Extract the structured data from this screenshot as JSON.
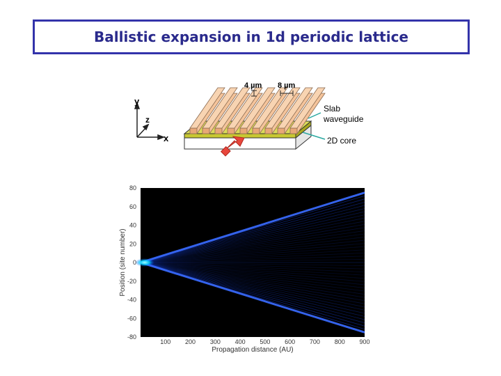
{
  "slide": {
    "title": "Ballistic expansion in 1d periodic lattice"
  },
  "diagram": {
    "axis_y": "y",
    "axis_z": "z",
    "axis_x": "x",
    "width_label": "4 µm",
    "spacing_label": "8 µm",
    "slab_label_1": "Slab",
    "slab_label_2": "waveguide",
    "core_label": "2D core",
    "colors": {
      "ridge": "#f5c49b",
      "slab": "#c8c832",
      "base": "#ffffff",
      "arrow": "#e8463c",
      "pointer": "#2aa8a0"
    }
  },
  "chart_data": {
    "type": "heatmap",
    "title": "",
    "xlabel": "Propagation distance (AU)",
    "ylabel": "Position (site number)",
    "xlim": [
      0,
      900
    ],
    "ylim": [
      -80,
      80
    ],
    "xticks": [
      "100",
      "200",
      "300",
      "400",
      "500",
      "600",
      "700",
      "800",
      "900"
    ],
    "yticks": [
      "80",
      "60",
      "40",
      "20",
      "0",
      "-20",
      "-40",
      "-60",
      "-80"
    ],
    "source": {
      "x": 0,
      "y": 0
    },
    "outer_edge_slope": 0.0833,
    "outer_edge_start": {
      "x": 0,
      "y": 0
    },
    "outer_edge_end": {
      "x": 900,
      "y": 75
    },
    "inner_rays": 22,
    "background": "#000000",
    "beam_color": "#1a4cff",
    "source_color": "#00ffff"
  }
}
